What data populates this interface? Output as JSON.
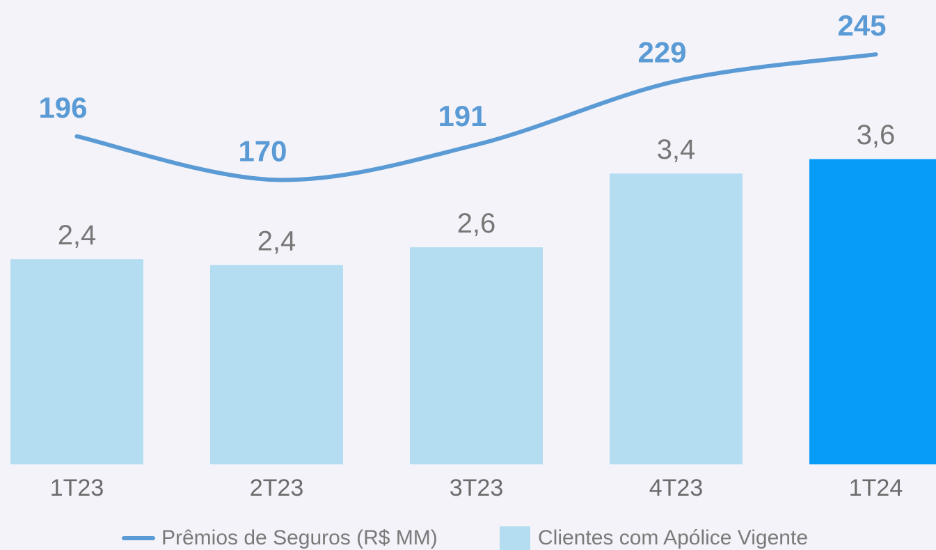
{
  "chart_data": {
    "type": "bar_line",
    "categories": [
      "1T23",
      "2T23",
      "3T23",
      "4T23",
      "1T24"
    ],
    "series": [
      {
        "name": "Clientes com Apólice Vigente",
        "type": "bar",
        "color": "#b4ddf1",
        "colors": [
          "#b4ddf1",
          "#b4ddf1",
          "#b4ddf1",
          "#b4ddf1",
          "#079cf8"
        ],
        "values": [
          2.42,
          2.35,
          2.56,
          3.43,
          3.6
        ],
        "value_labels": [
          "2,4",
          "2,4",
          "2,6",
          "3,4",
          "3,6"
        ]
      },
      {
        "name": "Prêmios de Seguros (R$ MM)",
        "type": "line",
        "axis": "y2",
        "color": "#5b9bd5",
        "values": [
          196,
          170,
          191,
          229,
          245
        ]
      }
    ],
    "ylim": [
      0,
      5.23
    ],
    "y2lim": [
      0,
      265
    ]
  }
}
